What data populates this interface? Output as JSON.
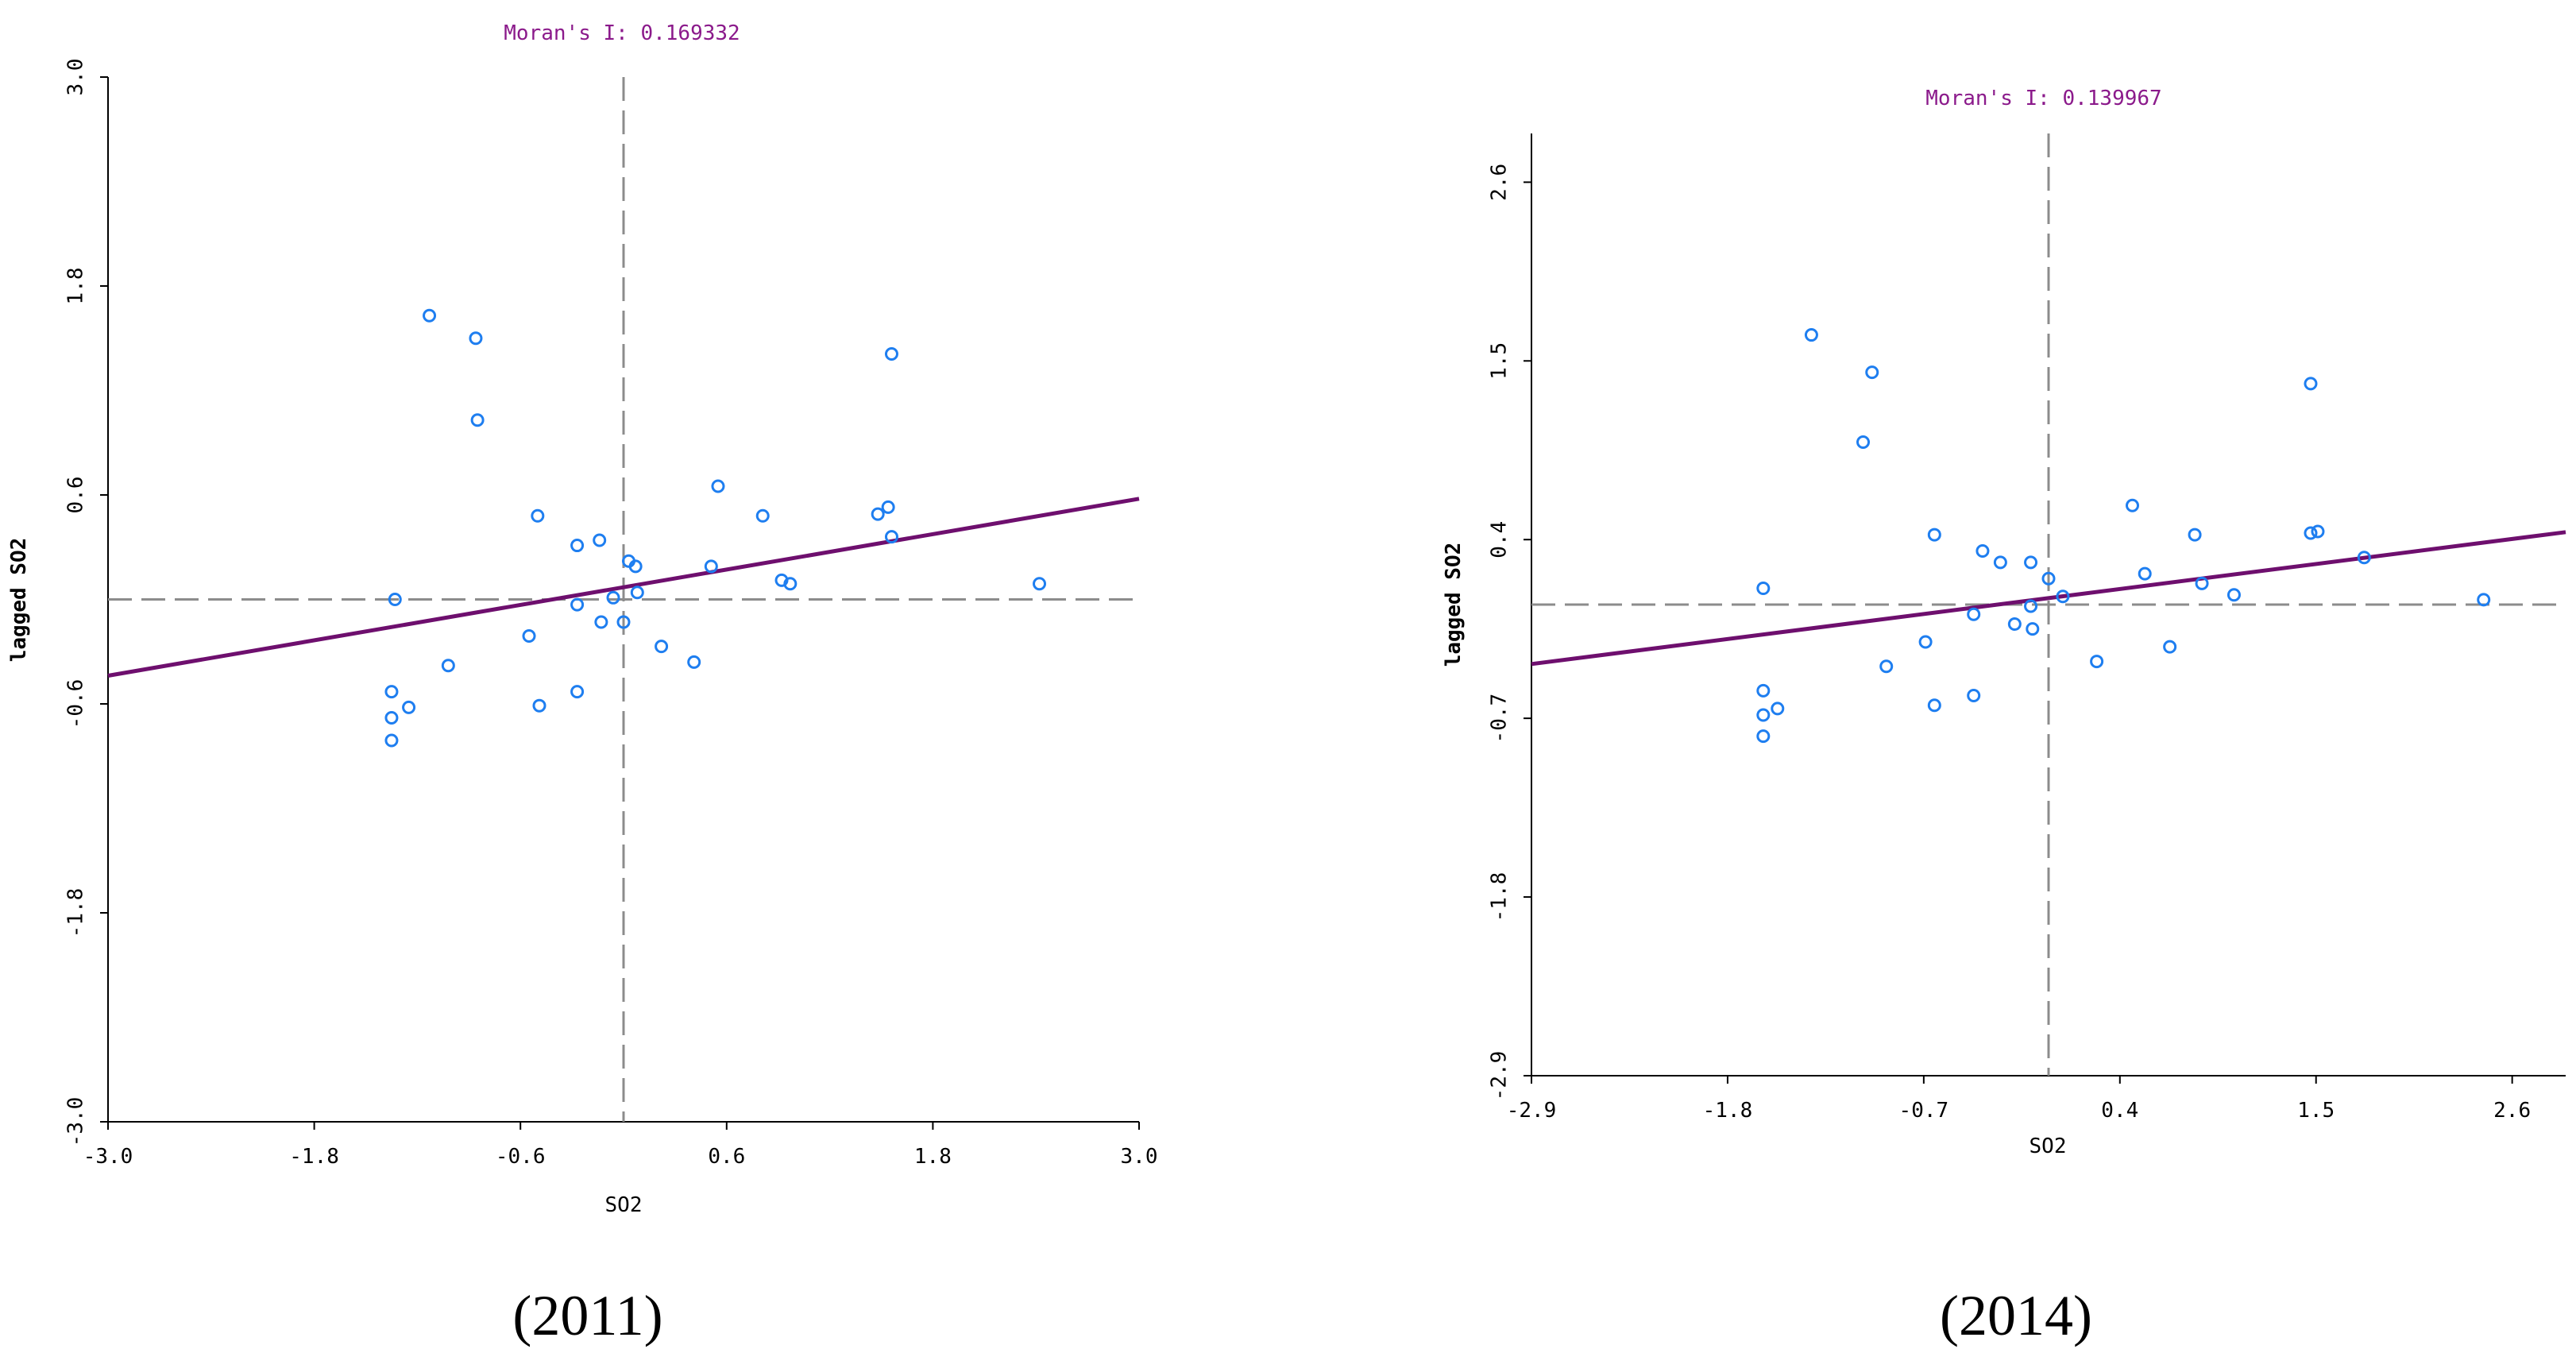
{
  "chart_data": [
    {
      "type": "scatter",
      "title": "Moran's I: 0.169332",
      "caption": "(2011)",
      "xlabel": "SO2",
      "ylabel": "lagged SO2",
      "xlim": [
        -3.0,
        3.0
      ],
      "ylim": [
        -3.0,
        3.0
      ],
      "xticks": [
        "-3.0",
        "-1.8",
        "-0.6",
        "0.6",
        "1.8",
        "3.0"
      ],
      "yticks": [
        "-3.0",
        "-1.8",
        "-0.6",
        "0.6",
        "1.8",
        "3.0"
      ],
      "regression": {
        "slope": 0.169332,
        "intercept": 0.07
      },
      "points": [
        {
          "x": -1.13,
          "y": 1.63
        },
        {
          "x": -0.86,
          "y": 1.5
        },
        {
          "x": -0.85,
          "y": 1.03
        },
        {
          "x": 1.56,
          "y": 1.41
        },
        {
          "x": 0.55,
          "y": 0.65
        },
        {
          "x": -0.5,
          "y": 0.48
        },
        {
          "x": -0.14,
          "y": 0.34
        },
        {
          "x": -0.27,
          "y": 0.31
        },
        {
          "x": 0.03,
          "y": 0.22
        },
        {
          "x": 0.07,
          "y": 0.19
        },
        {
          "x": 0.51,
          "y": 0.19
        },
        {
          "x": 0.81,
          "y": 0.48
        },
        {
          "x": 1.48,
          "y": 0.49
        },
        {
          "x": 1.54,
          "y": 0.53
        },
        {
          "x": 1.56,
          "y": 0.36
        },
        {
          "x": 0.92,
          "y": 0.11
        },
        {
          "x": 0.97,
          "y": 0.09
        },
        {
          "x": 2.42,
          "y": 0.09
        },
        {
          "x": -1.33,
          "y": 0.0
        },
        {
          "x": 0.08,
          "y": 0.04
        },
        {
          "x": -0.06,
          "y": 0.01
        },
        {
          "x": -0.27,
          "y": -0.03
        },
        {
          "x": -0.55,
          "y": -0.21
        },
        {
          "x": -0.13,
          "y": -0.13
        },
        {
          "x": 0.0,
          "y": -0.13
        },
        {
          "x": 0.22,
          "y": -0.27
        },
        {
          "x": 0.41,
          "y": -0.36
        },
        {
          "x": -1.02,
          "y": -0.38
        },
        {
          "x": -0.27,
          "y": -0.53
        },
        {
          "x": -0.49,
          "y": -0.61
        },
        {
          "x": -1.35,
          "y": -0.53
        },
        {
          "x": -1.25,
          "y": -0.62
        },
        {
          "x": -1.35,
          "y": -0.68
        },
        {
          "x": -1.35,
          "y": -0.81
        }
      ]
    },
    {
      "type": "scatter",
      "title": "Moran's I: 0.139967",
      "caption": "(2014)",
      "xlabel": "SO2",
      "ylabel": "lagged SO2",
      "xlim": [
        -2.9,
        2.9
      ],
      "ylim": [
        -2.9,
        2.9
      ],
      "xticks": [
        "-2.9",
        "-1.8",
        "-0.7",
        "0.4",
        "1.5",
        "2.6"
      ],
      "yticks": [
        "-2.9",
        "-1.8",
        "-0.7",
        "0.4",
        "1.5",
        "2.6"
      ],
      "regression": {
        "slope": 0.139967,
        "intercept": 0.04
      },
      "points": [
        {
          "x": -1.33,
          "y": 1.66
        },
        {
          "x": -0.99,
          "y": 1.43
        },
        {
          "x": -1.04,
          "y": 1.0
        },
        {
          "x": -1.6,
          "y": 0.1
        },
        {
          "x": -0.64,
          "y": 0.43
        },
        {
          "x": -0.37,
          "y": 0.33
        },
        {
          "x": -0.27,
          "y": 0.26
        },
        {
          "x": -0.1,
          "y": 0.26
        },
        {
          "x": 0.08,
          "y": 0.05
        },
        {
          "x": 0.0,
          "y": 0.16
        },
        {
          "x": 0.47,
          "y": 0.61
        },
        {
          "x": 0.54,
          "y": 0.19
        },
        {
          "x": 0.82,
          "y": 0.43
        },
        {
          "x": 0.86,
          "y": 0.13
        },
        {
          "x": 1.04,
          "y": 0.06
        },
        {
          "x": 1.47,
          "y": 1.36
        },
        {
          "x": 1.47,
          "y": 0.44
        },
        {
          "x": 1.51,
          "y": 0.45
        },
        {
          "x": 1.77,
          "y": 0.29
        },
        {
          "x": 2.44,
          "y": 0.03
        },
        {
          "x": -0.69,
          "y": -0.23
        },
        {
          "x": -0.42,
          "y": -0.06
        },
        {
          "x": -0.19,
          "y": -0.12
        },
        {
          "x": -0.09,
          "y": -0.15
        },
        {
          "x": -0.1,
          "y": -0.01
        },
        {
          "x": 0.27,
          "y": -0.35
        },
        {
          "x": 0.68,
          "y": -0.26
        },
        {
          "x": -0.91,
          "y": -0.38
        },
        {
          "x": -0.42,
          "y": -0.56
        },
        {
          "x": -0.64,
          "y": -0.62
        },
        {
          "x": -1.6,
          "y": -0.53
        },
        {
          "x": -1.52,
          "y": -0.64
        },
        {
          "x": -1.6,
          "y": -0.68
        },
        {
          "x": -1.6,
          "y": -0.81
        }
      ]
    }
  ]
}
